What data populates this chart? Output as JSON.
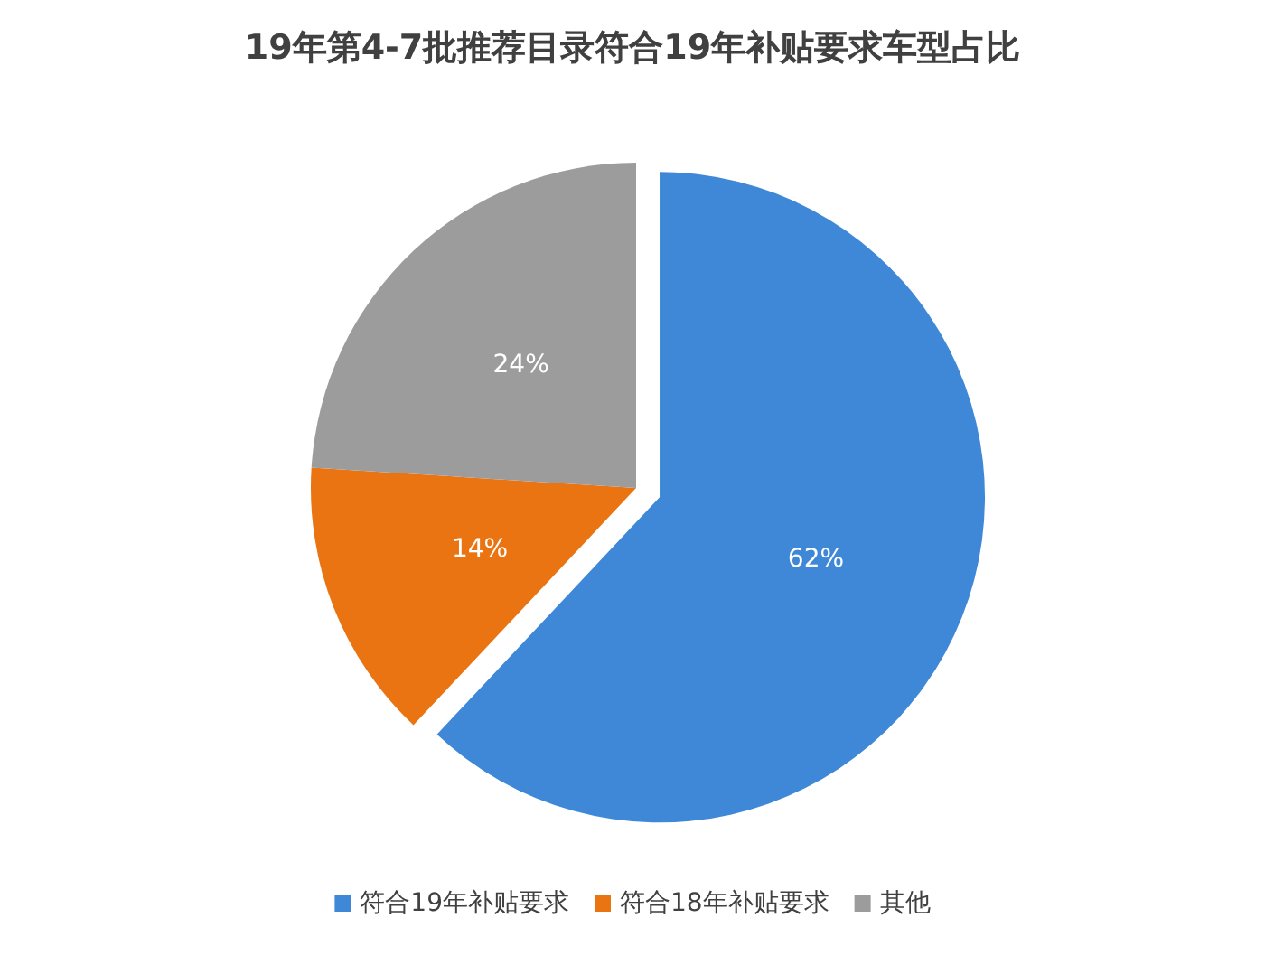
{
  "chart_data": {
    "type": "pie",
    "title": "19年第4-7批推荐目录符合19年补贴要求车型占比",
    "categories": [
      "符合19年补贴要求",
      "符合18年补贴要求",
      "其他"
    ],
    "values": [
      62,
      14,
      24
    ],
    "colors": [
      "#3f88d8",
      "#ea7412",
      "#9c9c9c"
    ],
    "value_labels": [
      "62%",
      "14%",
      "24%"
    ],
    "legend": "bottom"
  }
}
